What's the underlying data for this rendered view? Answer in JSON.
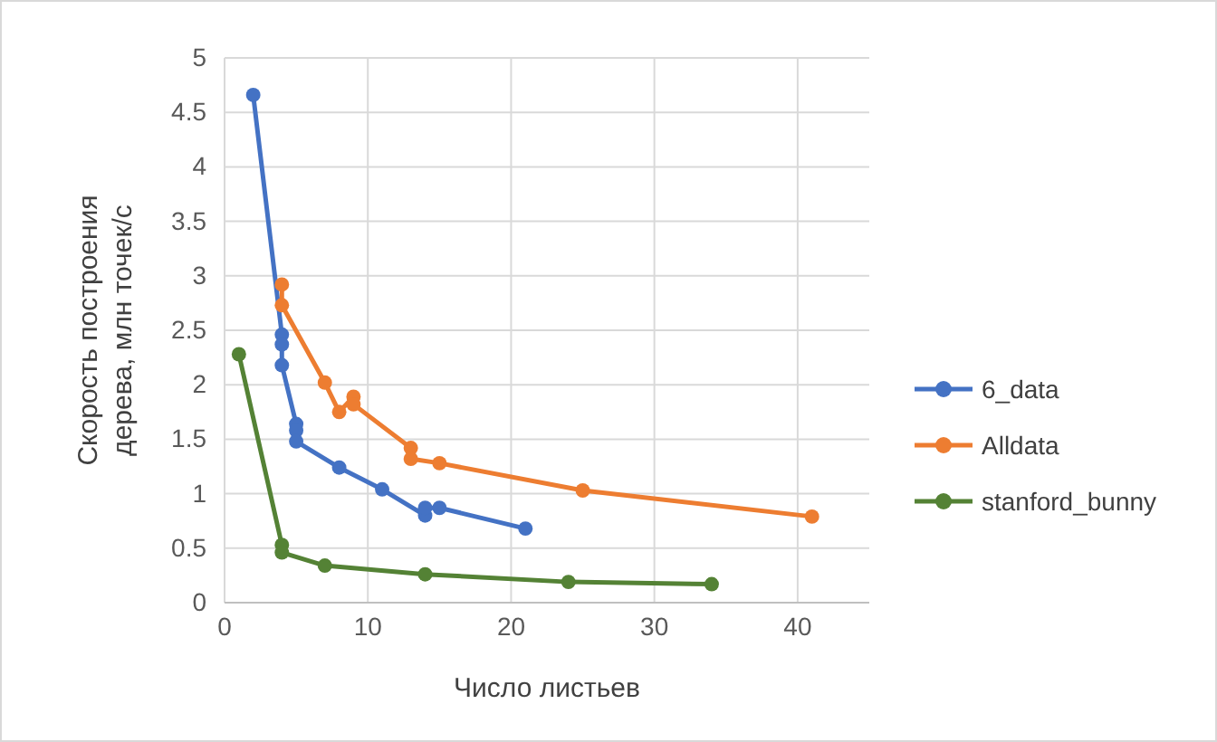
{
  "chart_data": {
    "type": "line",
    "xlabel": "Число листьев",
    "ylabel": "Скорость построения дерева, млн точек/с",
    "xlim": [
      0,
      45
    ],
    "xticks": [
      0,
      10,
      20,
      30,
      40
    ],
    "ylim": [
      0,
      5
    ],
    "yticks": [
      0,
      0.5,
      1,
      1.5,
      2,
      2.5,
      3,
      3.5,
      4,
      4.5,
      5
    ],
    "grid": true,
    "legend": "right",
    "marker": "circle",
    "line_style": "solid",
    "series": [
      {
        "name": "6_data",
        "color": "#4472c4",
        "x": [
          2,
          4,
          4,
          4,
          5,
          5,
          5,
          8,
          11,
          14,
          14,
          15,
          21
        ],
        "values": [
          4.66,
          2.46,
          2.37,
          2.18,
          1.64,
          1.58,
          1.48,
          1.24,
          1.04,
          0.8,
          0.87,
          0.87,
          0.68
        ]
      },
      {
        "name": "Alldata",
        "color": "#ed7d31",
        "x": [
          4,
          4,
          7,
          8,
          9,
          9,
          13,
          13,
          15,
          25,
          41
        ],
        "values": [
          2.92,
          2.73,
          2.02,
          1.75,
          1.89,
          1.82,
          1.42,
          1.32,
          1.28,
          1.03,
          0.79
        ]
      },
      {
        "name": "stanford_bunny",
        "color": "#548235",
        "x": [
          1,
          4,
          4,
          7,
          14,
          24,
          34
        ],
        "values": [
          2.28,
          0.53,
          0.46,
          0.34,
          0.26,
          0.19,
          0.17
        ]
      }
    ]
  }
}
